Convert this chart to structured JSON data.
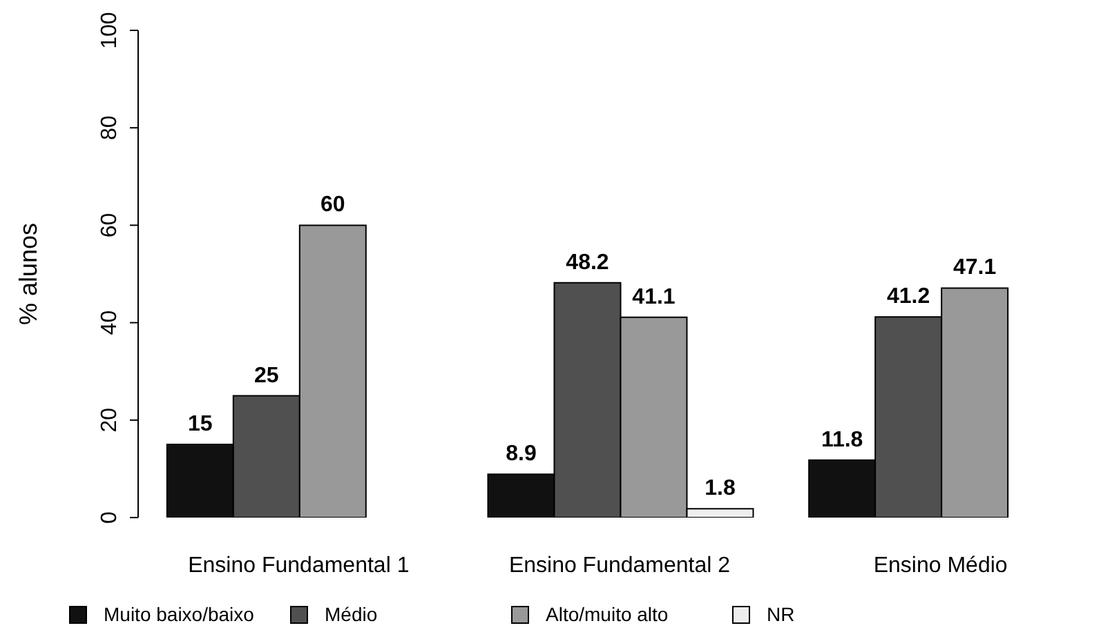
{
  "chart_data": {
    "type": "bar",
    "ylabel": "% alunos",
    "categories": [
      "Ensino Fundamental 1",
      "Ensino Fundamental 2",
      "Ensino Médio"
    ],
    "series": [
      {
        "name": "Muito baixo/baixo",
        "color": "#111111",
        "values": [
          15,
          8.9,
          11.8
        ]
      },
      {
        "name": "Médio",
        "color": "#505050",
        "values": [
          25,
          48.2,
          41.2
        ]
      },
      {
        "name": "Alto/muito alto",
        "color": "#999999",
        "values": [
          60,
          41.1,
          47.1
        ]
      },
      {
        "name": "NR",
        "color": "#eeeeee",
        "values": [
          null,
          1.8,
          null
        ]
      }
    ],
    "ylim": [
      0,
      100
    ],
    "yticks": [
      0,
      20,
      40,
      60,
      80,
      100
    ],
    "grid": false,
    "legend": "bottom",
    "data_labels": true
  }
}
